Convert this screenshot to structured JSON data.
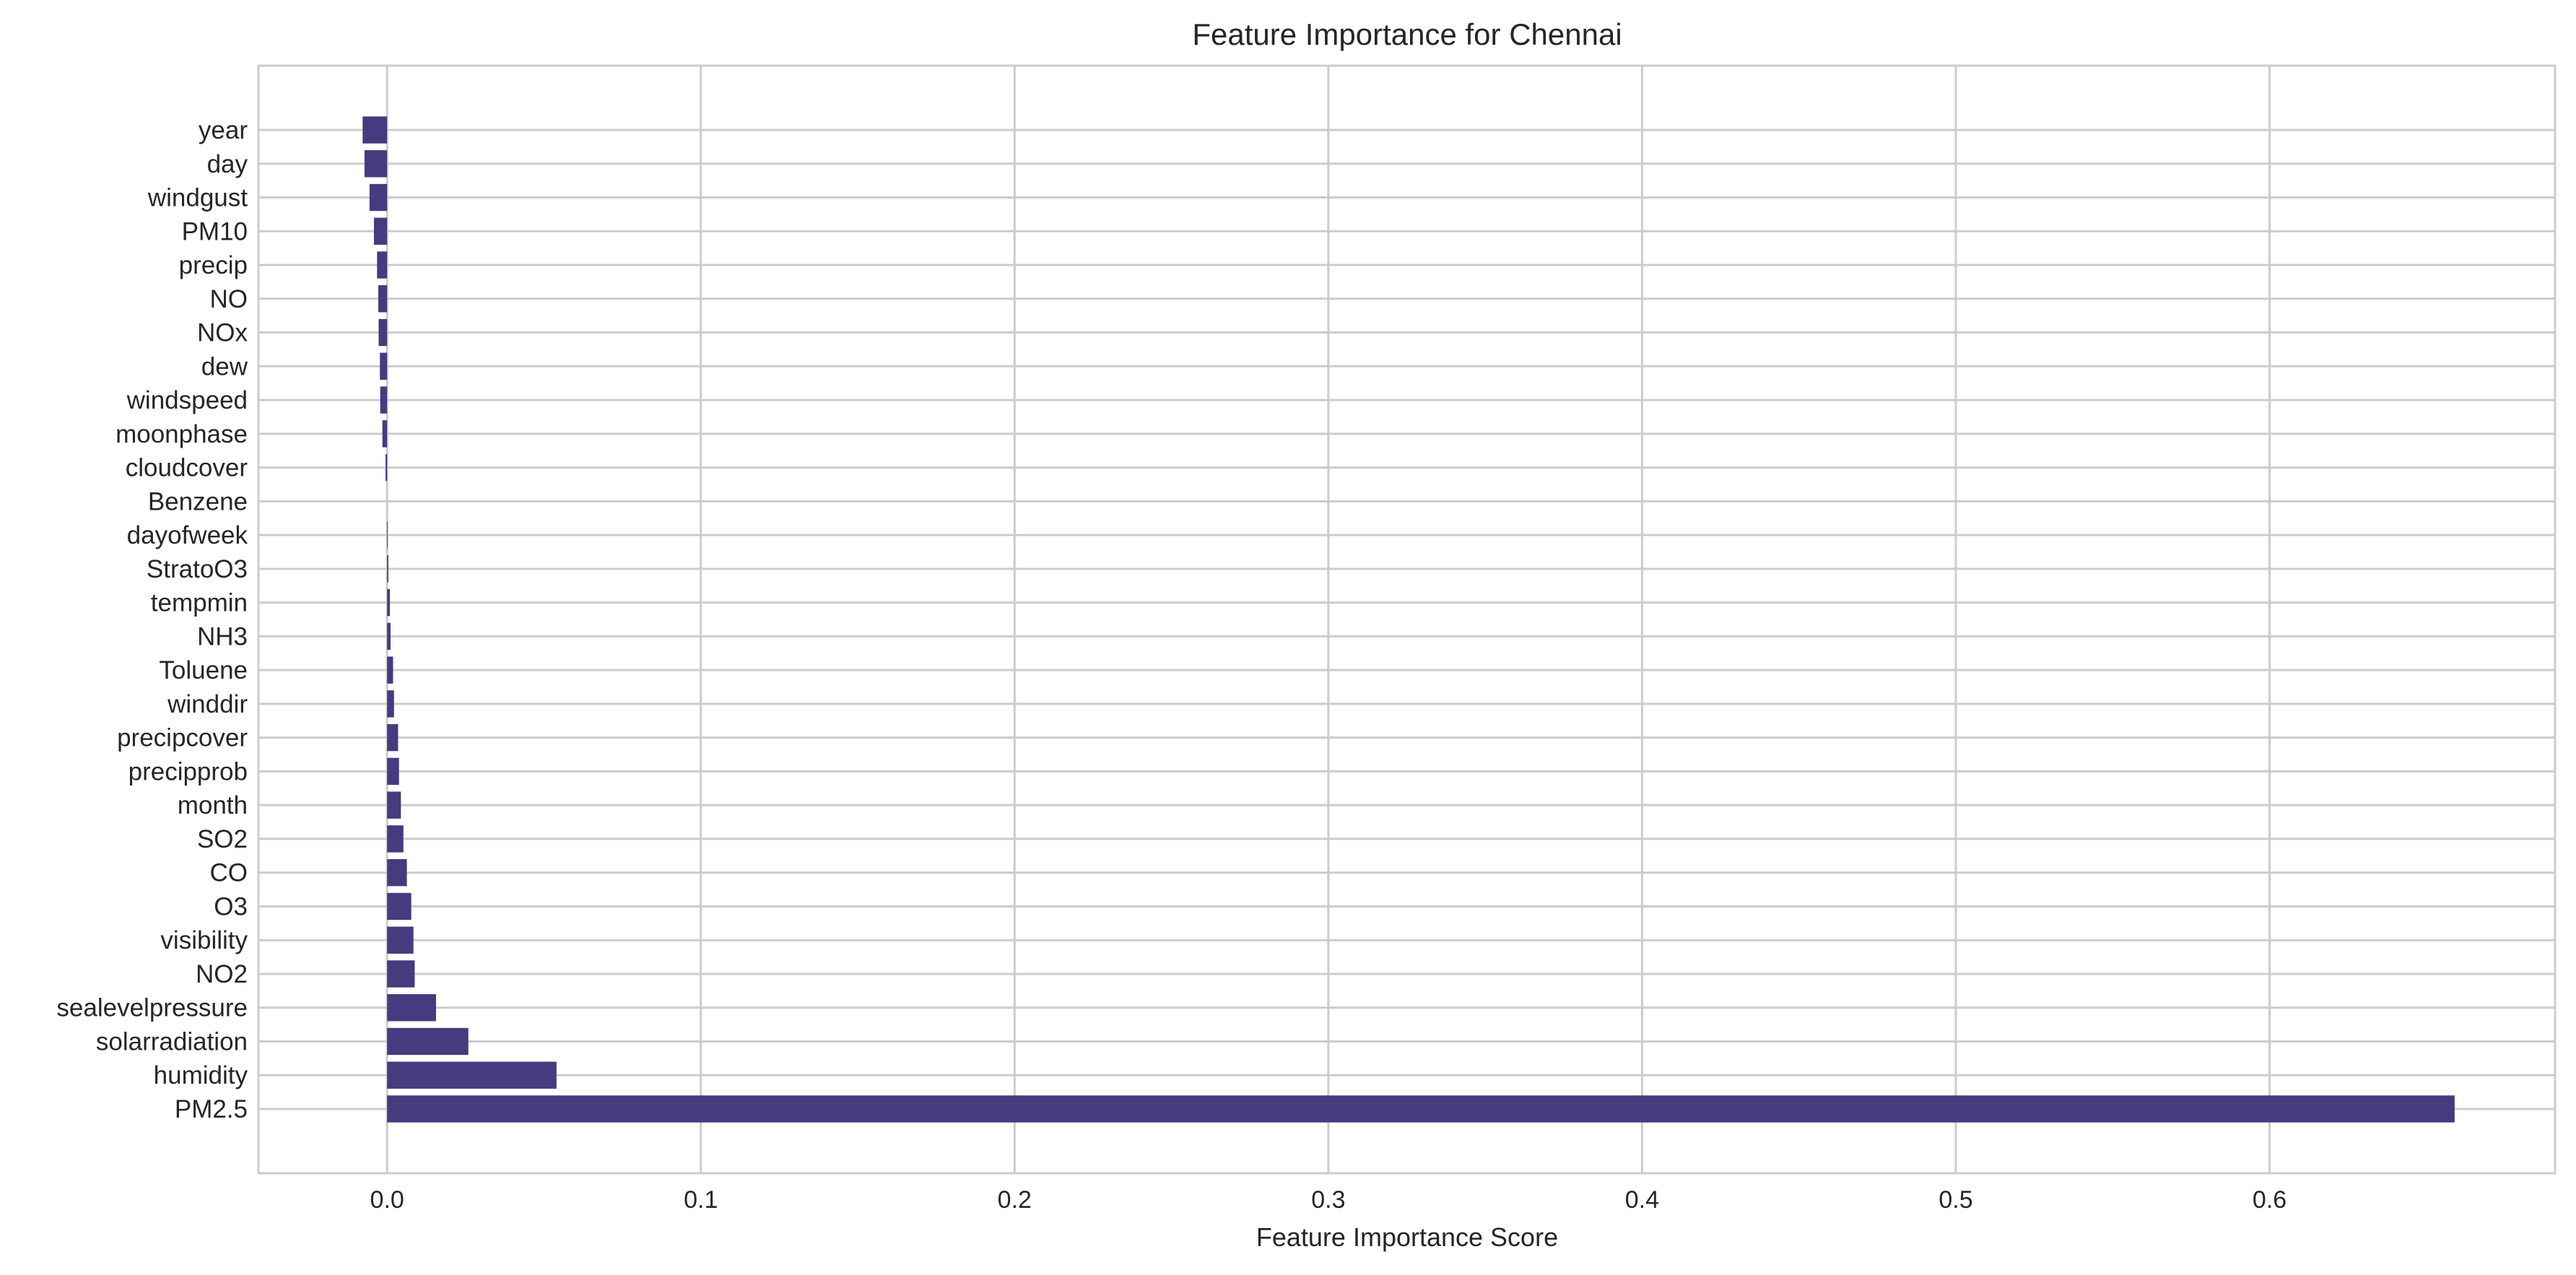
{
  "chart_data": {
    "type": "bar",
    "orientation": "horizontal",
    "title": "Feature Importance for Chennai",
    "xlabel": "Feature Importance Score",
    "ylabel": "",
    "xlim": [
      -0.041,
      0.691
    ],
    "xticks": [
      0.0,
      0.1,
      0.2,
      0.3,
      0.4,
      0.5,
      0.6
    ],
    "xtick_labels": [
      "0.0",
      "0.1",
      "0.2",
      "0.3",
      "0.4",
      "0.5",
      "0.6"
    ],
    "grid": true,
    "bar_color": "#483a7f",
    "categories": [
      "year",
      "day",
      "windgust",
      "PM10",
      "precip",
      "NO",
      "NOx",
      "dew",
      "windspeed",
      "moonphase",
      "cloudcover",
      "Benzene",
      "dayofweek",
      "StratoO3",
      "tempmin",
      "NH3",
      "Toluene",
      "winddir",
      "precipcover",
      "precipprob",
      "month",
      "SO2",
      "CO",
      "O3",
      "visibility",
      "NO2",
      "sealevelpressure",
      "solarradiation",
      "humidity",
      "PM2.5"
    ],
    "values": [
      -0.0078,
      -0.0072,
      -0.0056,
      -0.0042,
      -0.0032,
      -0.0028,
      -0.0027,
      -0.0023,
      -0.0022,
      -0.0015,
      -0.0005,
      0.0,
      0.0002,
      0.0004,
      0.0009,
      0.0011,
      0.0019,
      0.0022,
      0.0035,
      0.0038,
      0.0044,
      0.0052,
      0.0063,
      0.0077,
      0.0084,
      0.0088,
      0.0156,
      0.0259,
      0.054,
      0.659
    ]
  }
}
